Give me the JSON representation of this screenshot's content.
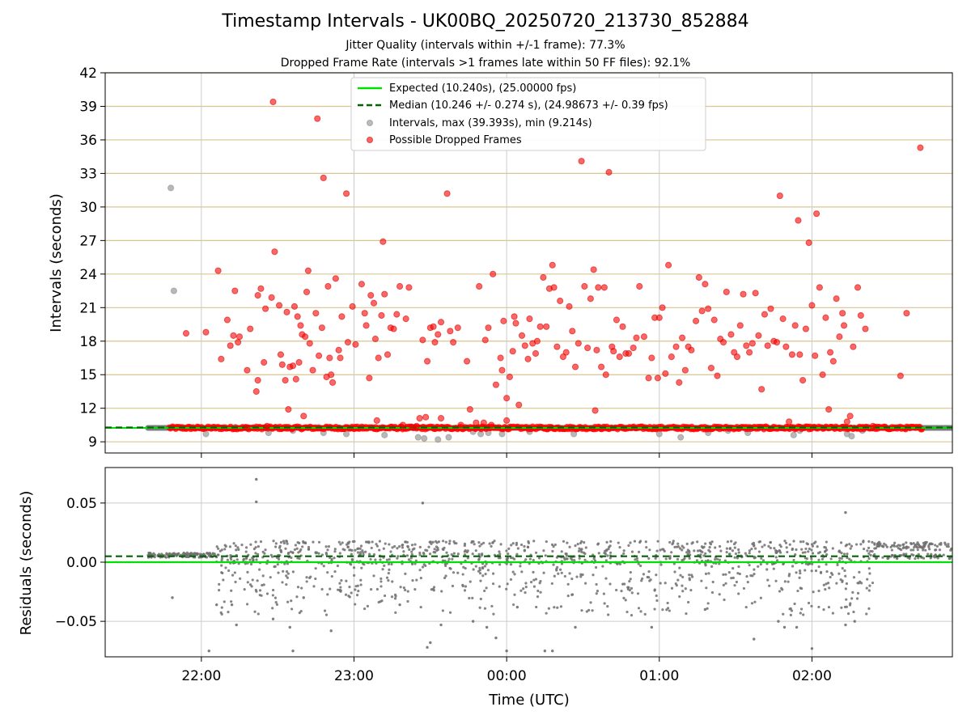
{
  "figure": {
    "title": "Timestamp Intervals - UK00BQ_20250720_213730_852884",
    "subtitle_jitter": "Jitter Quality (intervals within +/-1 frame): 77.3%",
    "subtitle_dropped": "Dropped Frame Rate (intervals >1 frames late within 50 FF files): 92.1%"
  },
  "colors": {
    "expected": "#00e000",
    "median": "#006400",
    "intervals": "#a0a0a0",
    "dropped": "#ff0000",
    "residuals": "#707070",
    "ygrid": "#d9c58f",
    "xgrid": "#cccccc"
  },
  "chart_data": [
    {
      "type": "scatter",
      "name": "intervals",
      "ylabel": "Intervals (seconds)",
      "ylim": [
        8,
        42
      ],
      "yticks": [
        9,
        12,
        15,
        18,
        21,
        24,
        27,
        30,
        33,
        36,
        39,
        42
      ],
      "ytick_labels": [
        "9",
        "12",
        "15",
        "18",
        "21",
        "24",
        "27",
        "30",
        "33",
        "36",
        "39",
        "42"
      ],
      "x_range_hours": [
        21.37,
        26.92
      ],
      "xticks_hours": [
        22,
        23,
        24,
        25,
        26
      ],
      "grid": "on",
      "legend_position": "top-center",
      "legend": [
        "Expected (10.240s), (25.00000 fps)",
        "Median (10.246 +/- 0.274 s), (24.98673 +/- 0.39 fps)",
        "Intervals, max (39.393s), min (9.214s)",
        "Possible Dropped Frames"
      ],
      "expected_y": 10.24,
      "median_y": 10.246,
      "baseline_y": 10.24,
      "baseline_start_hour": 21.65,
      "baseline_end_hour": 26.92,
      "dropped_band_start_hour": 21.79,
      "dropped_band_end_hour": 26.72,
      "gray_points": [
        [
          21.8,
          31.7
        ],
        [
          21.82,
          22.5
        ],
        [
          22.03,
          9.7
        ],
        [
          22.22,
          10.3
        ],
        [
          22.44,
          9.8
        ],
        [
          22.6,
          10.0
        ],
        [
          22.8,
          9.8
        ],
        [
          22.95,
          9.7
        ],
        [
          23.2,
          9.6
        ],
        [
          23.42,
          9.4
        ],
        [
          23.46,
          9.3
        ],
        [
          23.55,
          9.2
        ],
        [
          23.62,
          9.4
        ],
        [
          23.78,
          9.9
        ],
        [
          23.83,
          9.7
        ],
        [
          23.88,
          9.8
        ],
        [
          23.97,
          9.7
        ],
        [
          24.15,
          9.9
        ],
        [
          24.44,
          9.7
        ],
        [
          25.0,
          9.7
        ],
        [
          25.14,
          9.4
        ],
        [
          25.32,
          9.8
        ],
        [
          25.45,
          10.0
        ],
        [
          25.58,
          9.8
        ],
        [
          25.88,
          9.6
        ],
        [
          25.92,
          10.0
        ],
        [
          26.23,
          9.7
        ],
        [
          26.26,
          9.5
        ],
        [
          26.33,
          10.0
        ]
      ],
      "dropped_points": [
        [
          21.9,
          18.7
        ],
        [
          22.03,
          18.8
        ],
        [
          22.11,
          24.3
        ],
        [
          22.13,
          16.4
        ],
        [
          22.17,
          19.9
        ],
        [
          22.19,
          17.6
        ],
        [
          22.21,
          18.5
        ],
        [
          22.22,
          22.5
        ],
        [
          22.24,
          17.9
        ],
        [
          22.25,
          18.4
        ],
        [
          22.3,
          10.2
        ],
        [
          22.3,
          15.4
        ],
        [
          22.32,
          19.1
        ],
        [
          22.36,
          13.5
        ],
        [
          22.37,
          14.5
        ],
        [
          22.37,
          22.1
        ],
        [
          22.39,
          22.7
        ],
        [
          22.41,
          16.1
        ],
        [
          22.42,
          20.9
        ],
        [
          22.43,
          10.4
        ],
        [
          22.46,
          21.9
        ],
        [
          22.48,
          26.0
        ],
        [
          22.47,
          39.4
        ],
        [
          22.51,
          21.2
        ],
        [
          22.52,
          16.8
        ],
        [
          22.53,
          15.9
        ],
        [
          22.55,
          14.5
        ],
        [
          22.56,
          20.6
        ],
        [
          22.57,
          11.9
        ],
        [
          22.58,
          15.7
        ],
        [
          22.6,
          15.8
        ],
        [
          22.61,
          21.1
        ],
        [
          22.62,
          14.6
        ],
        [
          22.63,
          20.2
        ],
        [
          22.64,
          16.1
        ],
        [
          22.65,
          19.4
        ],
        [
          22.66,
          18.6
        ],
        [
          22.67,
          11.3
        ],
        [
          22.68,
          18.4
        ],
        [
          22.69,
          22.4
        ],
        [
          22.7,
          24.3
        ],
        [
          22.71,
          17.8
        ],
        [
          22.73,
          15.4
        ],
        [
          22.75,
          20.5
        ],
        [
          22.76,
          37.9
        ],
        [
          22.77,
          16.7
        ],
        [
          22.79,
          19.2
        ],
        [
          22.8,
          32.6
        ],
        [
          22.82,
          14.8
        ],
        [
          22.83,
          22.9
        ],
        [
          22.84,
          16.5
        ],
        [
          22.85,
          15.0
        ],
        [
          22.86,
          14.3
        ],
        [
          22.88,
          23.6
        ],
        [
          22.9,
          17.2
        ],
        [
          22.91,
          16.5
        ],
        [
          22.92,
          20.2
        ],
        [
          22.95,
          31.2
        ],
        [
          22.96,
          17.9
        ],
        [
          22.99,
          21.1
        ],
        [
          23.01,
          17.7
        ],
        [
          23.05,
          23.1
        ],
        [
          23.07,
          20.5
        ],
        [
          23.08,
          19.4
        ],
        [
          23.1,
          14.7
        ],
        [
          23.11,
          22.1
        ],
        [
          23.13,
          21.4
        ],
        [
          23.14,
          18.2
        ],
        [
          23.15,
          10.9
        ],
        [
          23.16,
          16.5
        ],
        [
          23.18,
          20.3
        ],
        [
          23.19,
          26.9
        ],
        [
          23.2,
          22.2
        ],
        [
          23.22,
          16.8
        ],
        [
          23.24,
          19.2
        ],
        [
          23.26,
          19.1
        ],
        [
          23.28,
          20.4
        ],
        [
          23.3,
          22.9
        ],
        [
          23.32,
          10.5
        ],
        [
          23.34,
          20.0
        ],
        [
          23.36,
          22.8
        ],
        [
          23.38,
          10.3
        ],
        [
          23.41,
          10.4
        ],
        [
          23.43,
          11.1
        ],
        [
          23.45,
          18.1
        ],
        [
          23.47,
          11.2
        ],
        [
          23.48,
          16.2
        ],
        [
          23.5,
          19.2
        ],
        [
          23.52,
          19.3
        ],
        [
          23.53,
          17.9
        ],
        [
          23.55,
          18.6
        ],
        [
          23.57,
          19.7
        ],
        [
          23.57,
          11.1
        ],
        [
          23.61,
          31.2
        ],
        [
          23.63,
          18.9
        ],
        [
          23.65,
          17.9
        ],
        [
          23.68,
          19.2
        ],
        [
          23.7,
          10.5
        ],
        [
          23.74,
          16.2
        ],
        [
          23.76,
          11.9
        ],
        [
          23.8,
          10.7
        ],
        [
          23.82,
          22.9
        ],
        [
          23.85,
          10.7
        ],
        [
          23.86,
          18.1
        ],
        [
          23.88,
          19.2
        ],
        [
          23.9,
          10.5
        ],
        [
          23.91,
          24.0
        ],
        [
          23.93,
          14.1
        ],
        [
          23.96,
          16.5
        ],
        [
          23.97,
          15.4
        ],
        [
          23.98,
          19.8
        ],
        [
          24.0,
          10.9
        ],
        [
          24.0,
          12.9
        ],
        [
          24.02,
          14.8
        ],
        [
          24.04,
          17.1
        ],
        [
          24.05,
          20.2
        ],
        [
          24.06,
          19.6
        ],
        [
          24.08,
          12.3
        ],
        [
          24.1,
          18.5
        ],
        [
          24.12,
          17.6
        ],
        [
          24.14,
          16.4
        ],
        [
          24.15,
          20.0
        ],
        [
          24.17,
          17.8
        ],
        [
          24.19,
          16.9
        ],
        [
          24.2,
          18.0
        ],
        [
          24.22,
          19.3
        ],
        [
          24.24,
          23.7
        ],
        [
          24.26,
          19.3
        ],
        [
          24.28,
          22.7
        ],
        [
          24.3,
          24.8
        ],
        [
          24.31,
          22.8
        ],
        [
          24.33,
          17.5
        ],
        [
          24.35,
          21.6
        ],
        [
          24.37,
          16.6
        ],
        [
          24.39,
          17.0
        ],
        [
          24.41,
          21.1
        ],
        [
          24.43,
          18.9
        ],
        [
          24.45,
          15.7
        ],
        [
          24.47,
          17.8
        ],
        [
          24.49,
          34.1
        ],
        [
          24.51,
          22.9
        ],
        [
          24.53,
          17.4
        ],
        [
          24.55,
          21.8
        ],
        [
          24.57,
          24.4
        ],
        [
          24.58,
          11.8
        ],
        [
          24.59,
          17.2
        ],
        [
          24.6,
          22.8
        ],
        [
          24.62,
          15.7
        ],
        [
          24.64,
          22.8
        ],
        [
          24.65,
          15.0
        ],
        [
          24.67,
          33.1
        ],
        [
          24.69,
          17.5
        ],
        [
          24.7,
          17.1
        ],
        [
          24.72,
          19.9
        ],
        [
          24.74,
          16.6
        ],
        [
          24.76,
          19.3
        ],
        [
          24.78,
          16.9
        ],
        [
          24.8,
          16.9
        ],
        [
          24.83,
          17.4
        ],
        [
          24.85,
          18.3
        ],
        [
          24.87,
          22.9
        ],
        [
          24.9,
          18.4
        ],
        [
          24.93,
          14.7
        ],
        [
          24.95,
          16.5
        ],
        [
          24.97,
          20.1
        ],
        [
          24.99,
          14.7
        ],
        [
          25.0,
          20.1
        ],
        [
          25.02,
          21.0
        ],
        [
          25.04,
          15.1
        ],
        [
          25.06,
          24.8
        ],
        [
          25.08,
          16.6
        ],
        [
          25.11,
          17.5
        ],
        [
          25.13,
          14.3
        ],
        [
          25.15,
          18.3
        ],
        [
          25.17,
          15.4
        ],
        [
          25.19,
          17.5
        ],
        [
          25.21,
          17.2
        ],
        [
          25.24,
          19.8
        ],
        [
          25.26,
          23.7
        ],
        [
          25.28,
          20.7
        ],
        [
          25.3,
          23.1
        ],
        [
          25.32,
          20.9
        ],
        [
          25.34,
          15.6
        ],
        [
          25.36,
          19.9
        ],
        [
          25.38,
          14.9
        ],
        [
          25.4,
          18.2
        ],
        [
          25.42,
          17.9
        ],
        [
          25.44,
          22.4
        ],
        [
          25.47,
          18.6
        ],
        [
          25.49,
          17.0
        ],
        [
          25.51,
          16.6
        ],
        [
          25.53,
          19.4
        ],
        [
          25.55,
          22.2
        ],
        [
          25.57,
          17.6
        ],
        [
          25.59,
          17.0
        ],
        [
          25.61,
          17.8
        ],
        [
          25.63,
          22.3
        ],
        [
          25.65,
          18.5
        ],
        [
          25.67,
          13.7
        ],
        [
          25.69,
          20.4
        ],
        [
          25.71,
          17.6
        ],
        [
          25.73,
          20.9
        ],
        [
          25.75,
          18.0
        ],
        [
          25.77,
          17.9
        ],
        [
          25.79,
          31.0
        ],
        [
          25.81,
          20.0
        ],
        [
          25.83,
          17.5
        ],
        [
          25.85,
          10.8
        ],
        [
          25.87,
          16.8
        ],
        [
          25.89,
          19.4
        ],
        [
          25.91,
          28.8
        ],
        [
          25.92,
          16.8
        ],
        [
          25.94,
          14.5
        ],
        [
          25.96,
          19.1
        ],
        [
          25.98,
          26.8
        ],
        [
          26.0,
          21.2
        ],
        [
          26.02,
          16.7
        ],
        [
          26.03,
          29.4
        ],
        [
          26.05,
          22.8
        ],
        [
          26.07,
          15.0
        ],
        [
          26.09,
          20.1
        ],
        [
          26.11,
          11.9
        ],
        [
          26.12,
          17.0
        ],
        [
          26.14,
          16.2
        ],
        [
          26.16,
          21.8
        ],
        [
          26.18,
          18.4
        ],
        [
          26.2,
          20.5
        ],
        [
          26.21,
          19.4
        ],
        [
          26.23,
          10.8
        ],
        [
          26.25,
          11.3
        ],
        [
          26.27,
          17.5
        ],
        [
          26.3,
          22.8
        ],
        [
          26.32,
          20.3
        ],
        [
          26.35,
          19.1
        ],
        [
          26.4,
          10.4
        ],
        [
          26.58,
          14.9
        ],
        [
          26.62,
          20.5
        ],
        [
          26.71,
          35.3
        ]
      ]
    },
    {
      "type": "scatter",
      "name": "residuals",
      "xlabel": "Time (UTC)",
      "ylabel": "Residuals (seconds)",
      "ylim": [
        -0.08,
        0.08
      ],
      "yticks": [
        -0.05,
        0.0,
        0.05
      ],
      "ytick_labels": [
        "−0.05",
        "0.00",
        "0.05"
      ],
      "xtick_labels": [
        "22:00",
        "23:00",
        "00:00",
        "01:00",
        "02:00"
      ],
      "xticks_hours": [
        22,
        23,
        24,
        25,
        26
      ],
      "x_range_hours": [
        21.37,
        26.92
      ],
      "expected_y": 0.0,
      "median_y": 0.005,
      "points_start_hour": 21.65,
      "points_end_hour": 26.92,
      "outlier_points": [
        [
          21.81,
          -0.03
        ],
        [
          22.05,
          -0.075
        ],
        [
          22.1,
          -0.036
        ],
        [
          22.2,
          -0.036
        ],
        [
          22.23,
          -0.053
        ],
        [
          22.36,
          0.07
        ],
        [
          22.36,
          0.051
        ],
        [
          22.47,
          -0.048
        ],
        [
          22.58,
          -0.055
        ],
        [
          22.6,
          -0.075
        ],
        [
          22.67,
          -0.03
        ],
        [
          22.85,
          -0.058
        ],
        [
          23.3,
          -0.036
        ],
        [
          23.45,
          0.05
        ],
        [
          23.48,
          -0.072
        ],
        [
          23.5,
          -0.068
        ],
        [
          23.57,
          -0.053
        ],
        [
          23.78,
          -0.05
        ],
        [
          23.87,
          -0.055
        ],
        [
          23.93,
          -0.064
        ],
        [
          24.0,
          -0.075
        ],
        [
          24.07,
          -0.038
        ],
        [
          24.25,
          -0.075
        ],
        [
          24.3,
          -0.075
        ],
        [
          24.45,
          -0.055
        ],
        [
          24.95,
          -0.055
        ],
        [
          25.3,
          -0.04
        ],
        [
          25.62,
          -0.065
        ],
        [
          25.78,
          -0.05
        ],
        [
          25.82,
          -0.055
        ],
        [
          25.9,
          -0.055
        ],
        [
          26.0,
          -0.073
        ],
        [
          26.22,
          0.042
        ],
        [
          26.22,
          -0.053
        ],
        [
          26.28,
          -0.05
        ]
      ]
    }
  ]
}
